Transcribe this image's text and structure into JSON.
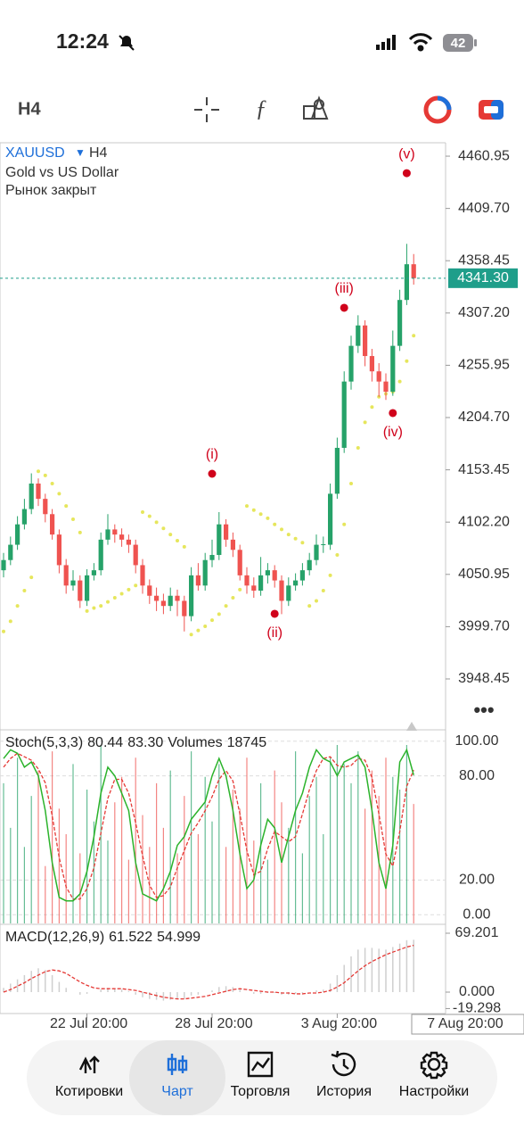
{
  "status_bar": {
    "time": "12:24",
    "battery": "42"
  },
  "toolbar": {
    "timeframe": "H4"
  },
  "nav": {
    "items": [
      "Котировки",
      "Чарт",
      "Торговля",
      "История",
      "Настройки"
    ],
    "active": 1
  },
  "chart_data": {
    "type": "candlestick",
    "symbol": "XAUUSD",
    "timeframe": "H4",
    "description": "Gold vs US Dollar",
    "status": "Рынок закрыт",
    "categories": [
      null,
      null,
      null,
      null,
      null,
      null,
      null,
      null,
      null,
      null,
      null,
      null,
      "22 Jul 20:00",
      null,
      null,
      null,
      null,
      null,
      null,
      null,
      null,
      null,
      null,
      null,
      null,
      null,
      null,
      null,
      null,
      null,
      "28 Jul 20:00",
      null,
      null,
      null,
      null,
      null,
      null,
      null,
      null,
      null,
      null,
      null,
      null,
      null,
      null,
      null,
      null,
      null,
      "3 Aug 20:00",
      null,
      null,
      null,
      null,
      null,
      null,
      null,
      null,
      null,
      null,
      null
    ],
    "cursor_time": "7 Aug 20:00",
    "open": [
      4055,
      4065,
      4080,
      4100,
      4115,
      4140,
      4125,
      4110,
      4090,
      4060,
      4040,
      4045,
      4025,
      4050,
      4055,
      4085,
      4095,
      4090,
      4085,
      4080,
      4060,
      4040,
      4030,
      4025,
      4020,
      4030,
      4025,
      4010,
      4050,
      4040,
      4065,
      4070,
      4100,
      4085,
      4075,
      4050,
      4040,
      4035,
      4050,
      4055,
      4045,
      4025,
      4040,
      4045,
      4055,
      4065,
      4080,
      4080,
      4130,
      4175,
      4240,
      4275,
      4295,
      4265,
      4250,
      4240,
      4230,
      4275,
      4320,
      4355
    ],
    "high": [
      4072,
      4088,
      4108,
      4125,
      4150,
      4145,
      4130,
      4115,
      4095,
      4066,
      4055,
      4050,
      4056,
      4062,
      4092,
      4110,
      4100,
      4096,
      4090,
      4085,
      4066,
      4046,
      4038,
      4032,
      4038,
      4036,
      4030,
      4058,
      4062,
      4072,
      4085,
      4112,
      4105,
      4092,
      4080,
      4058,
      4048,
      4068,
      4062,
      4060,
      4050,
      4048,
      4052,
      4062,
      4072,
      4090,
      4088,
      4140,
      4185,
      4250,
      4285,
      4305,
      4300,
      4272,
      4258,
      4248,
      4290,
      4330,
      4375,
      4365
    ],
    "low": [
      4048,
      4060,
      4075,
      4095,
      4110,
      4118,
      4102,
      4085,
      4052,
      4032,
      4035,
      4018,
      4020,
      4045,
      4050,
      4080,
      4082,
      4078,
      4072,
      4052,
      4032,
      4022,
      4015,
      4012,
      4015,
      4010,
      3995,
      4005,
      4035,
      4035,
      4058,
      4065,
      4078,
      4068,
      4045,
      4032,
      4028,
      4030,
      4042,
      4038,
      4012,
      4020,
      4035,
      4040,
      4050,
      4060,
      4072,
      4075,
      4125,
      4170,
      4232,
      4268,
      4255,
      4240,
      4225,
      4222,
      4226,
      4270,
      4315,
      4335
    ],
    "close": [
      4065,
      4080,
      4100,
      4115,
      4140,
      4125,
      4110,
      4090,
      4060,
      4040,
      4045,
      4025,
      4050,
      4055,
      4085,
      4095,
      4090,
      4085,
      4080,
      4060,
      4040,
      4030,
      4025,
      4020,
      4030,
      4025,
      4010,
      4050,
      4040,
      4065,
      4070,
      4100,
      4085,
      4075,
      4050,
      4040,
      4035,
      4050,
      4055,
      4045,
      4025,
      4040,
      4045,
      4055,
      4065,
      4080,
      4080.5,
      4130,
      4175,
      4240,
      4275,
      4295,
      4265,
      4250,
      4240,
      4230,
      4275,
      4320,
      4355,
      4341.3
    ],
    "last_price_label": "4341.30",
    "bull_color": "#26a269",
    "bear_color": "#ef5350",
    "last_price_color": "#1f9e8a",
    "ylim": [
      3901.2,
      4474.1
    ],
    "yticks": [
      4460.95,
      {
        "value": 4409.7,
        "label": "4409.70"
      },
      4358.45,
      {
        "value": 4307.2,
        "label": "4307.20"
      },
      4255.95,
      {
        "value": 4204.7,
        "label": "4204.70"
      },
      4153.45,
      {
        "value": 4102.2,
        "label": "4102.20"
      },
      4050.95,
      {
        "value": 3999.7,
        "label": "3999.70"
      },
      3948.45
    ],
    "sar": {
      "color": "#e6e65c",
      "values": [
        3995,
        4005,
        4020,
        4035,
        4048,
        4152,
        4148,
        4140,
        4130,
        4118,
        4105,
        4092,
        4015,
        4018,
        4020,
        4024,
        4028,
        4032,
        4036,
        4040,
        4112,
        4108,
        4102,
        4096,
        4090,
        4084,
        4078,
        3992,
        3996,
        4000,
        4006,
        4012,
        4020,
        4028,
        4036,
        4118,
        4114,
        4110,
        4106,
        4100,
        4095,
        4090,
        4086,
        4082,
        4020,
        4025,
        4035,
        4050,
        4070,
        4100,
        4140,
        4175,
        4200,
        4215,
        4225,
        4228,
        4230,
        4240,
        4260,
        4285
      ]
    },
    "waves": [
      {
        "label": "(i)",
        "index": 30,
        "value": 4149.6
      },
      {
        "label": "(ii)",
        "index": 39,
        "value": 4012.3
      },
      {
        "label": "(iii)",
        "index": 49,
        "value": 4312.3
      },
      {
        "label": "(iv)",
        "index": 56,
        "value": 4209.1
      },
      {
        "label": "(v)",
        "index": 58,
        "value": 4444.3
      }
    ],
    "wave_color": "#d0021b",
    "stoch": {
      "name": "Stoch(5,3,3)",
      "k_label": "80.44",
      "d_label": "83.30",
      "k_color": "#2bb32b",
      "d_color": "#e53935",
      "k": [
        90,
        95,
        93,
        85,
        88,
        80,
        60,
        30,
        10,
        8,
        8,
        12,
        25,
        45,
        70,
        85,
        80,
        70,
        60,
        30,
        12,
        10,
        8,
        15,
        25,
        40,
        45,
        55,
        60,
        65,
        80,
        90,
        80,
        60,
        35,
        15,
        20,
        40,
        55,
        50,
        30,
        45,
        60,
        70,
        85,
        95,
        90,
        88,
        80,
        88,
        90,
        92,
        85,
        60,
        30,
        15,
        40,
        88,
        95,
        80.44
      ],
      "d": [
        85,
        90,
        93,
        91,
        89,
        84,
        76,
        57,
        33,
        16,
        9,
        9,
        15,
        27,
        47,
        67,
        78,
        78,
        70,
        53,
        34,
        17,
        10,
        11,
        16,
        27,
        37,
        47,
        53,
        60,
        68,
        78,
        83,
        77,
        58,
        37,
        23,
        25,
        38,
        48,
        45,
        42,
        45,
        58,
        72,
        83,
        90,
        91,
        86,
        85,
        86,
        90,
        89,
        79,
        58,
        35,
        28,
        48,
        74,
        83.3
      ],
      "ylim": [
        -5,
        105.5
      ],
      "yticks": [
        {
          "value": 100,
          "label": "100.00"
        },
        {
          "value": 80,
          "label": "80.00"
        },
        {
          "value": 20,
          "label": "20.00"
        },
        {
          "value": 0,
          "label": "0.00"
        }
      ]
    },
    "volumes": {
      "name": "Volumes",
      "values": [
        22000,
        15000,
        26000,
        12000,
        20000,
        24000,
        9000,
        27000,
        18000,
        14000,
        25000,
        11000,
        21000,
        16000,
        28000,
        13000,
        19000,
        23000,
        10000,
        26000,
        17000,
        12000,
        22000,
        15000,
        24000,
        11000,
        20000,
        27000,
        14000,
        23000,
        16000,
        25000,
        12000,
        21000,
        18000,
        26000,
        13000,
        22000,
        10000,
        24000,
        19000,
        15000,
        27000,
        11000,
        20000,
        23000,
        14000,
        26000,
        28000,
        25000,
        22000,
        27000,
        18000,
        24000,
        20000,
        26000,
        23000,
        21000,
        28000,
        18745
      ]
    },
    "macd": {
      "name": "MACD(12,26,9)",
      "bar_color": "#cfcfcf",
      "signal_color": "#e53935",
      "values": [
        5,
        10,
        15,
        20,
        25,
        28,
        26,
        20,
        12,
        5,
        0,
        -3,
        -2,
        0,
        3,
        5,
        4,
        3,
        1,
        -3,
        -6,
        -8,
        -9,
        -10,
        -9,
        -8,
        -8,
        -4,
        -3,
        0,
        2,
        6,
        7,
        6,
        3,
        0,
        -2,
        -2,
        -1,
        -1,
        -3,
        -3,
        -2,
        -1,
        0,
        2,
        3,
        10,
        20,
        32,
        42,
        50,
        52,
        52,
        51,
        50,
        53,
        57,
        61,
        61.522
      ],
      "signal": [
        0,
        3,
        7,
        11,
        16,
        20,
        24,
        26,
        25,
        22,
        17,
        12,
        8,
        5,
        4,
        4,
        4,
        4,
        3,
        2,
        0,
        -2,
        -4,
        -6,
        -7,
        -8,
        -8,
        -7,
        -6,
        -5,
        -3,
        -1,
        1,
        3,
        4,
        3,
        2,
        1,
        0,
        0,
        -1,
        -1,
        -2,
        -2,
        -1,
        -1,
        0,
        2,
        6,
        11,
        18,
        25,
        31,
        36,
        40,
        44,
        47,
        50,
        53,
        54.999
      ],
      "ylim": [
        -24.1,
        77.6
      ],
      "yticks": [
        69.201,
        {
          "value": 0,
          "label": "0.000"
        },
        -19.298
      ]
    }
  }
}
